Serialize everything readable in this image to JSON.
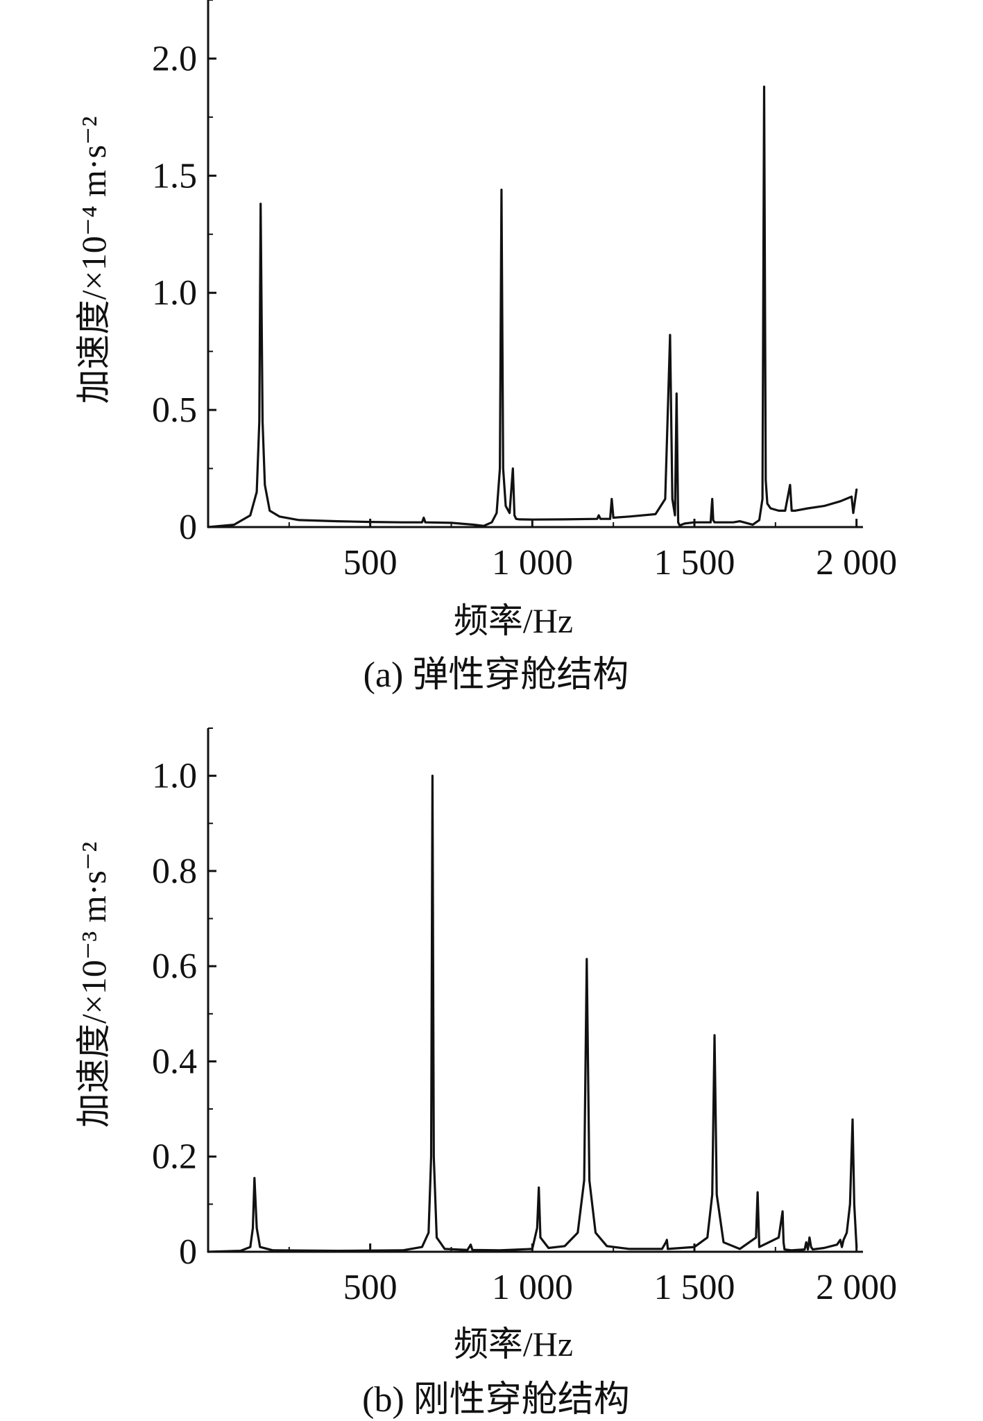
{
  "chart_data": [
    {
      "type": "line",
      "caption": "(a) 弹性穿舱结构",
      "xlabel": "频率/Hz",
      "ylabel": "加速度/×10⁻⁴ m·s⁻²",
      "xlim": [
        0,
        2020
      ],
      "ylim": [
        0,
        2.25
      ],
      "xticks": [
        500,
        1000,
        1500,
        2000
      ],
      "xtick_labels": [
        "500",
        "1 000",
        "1 500",
        "2 000"
      ],
      "yticks": [
        0,
        0.5,
        1.0,
        1.5,
        2.0
      ],
      "ytick_labels": [
        "0",
        "0.5",
        "1.0",
        "1.5",
        "2.0"
      ],
      "grid": false,
      "series": [
        {
          "x": [
            0,
            80,
            130,
            150,
            158,
            162,
            168,
            175,
            190,
            220,
            280,
            400,
            500,
            600,
            660,
            665,
            670,
            750,
            820,
            850,
            875,
            890,
            900,
            905,
            910,
            918,
            930,
            940,
            945,
            950,
            960,
            1000,
            1100,
            1200,
            1205,
            1210,
            1240,
            1245,
            1250,
            1300,
            1380,
            1410,
            1425,
            1432,
            1440,
            1445,
            1450,
            1455,
            1460,
            1470,
            1500,
            1550,
            1555,
            1558,
            1562,
            1565,
            1580,
            1620,
            1640,
            1680,
            1700,
            1710,
            1715,
            1720,
            1725,
            1735,
            1760,
            1780,
            1795,
            1800,
            1810,
            1850,
            1900,
            1950,
            1985,
            1990,
            2000
          ],
          "y": [
            0,
            0.01,
            0.05,
            0.15,
            0.45,
            1.38,
            0.45,
            0.18,
            0.07,
            0.045,
            0.03,
            0.025,
            0.022,
            0.02,
            0.02,
            0.04,
            0.02,
            0.018,
            0.01,
            0.005,
            0.02,
            0.06,
            0.25,
            1.44,
            0.25,
            0.09,
            0.06,
            0.25,
            0.05,
            0.035,
            0.033,
            0.032,
            0.033,
            0.035,
            0.05,
            0.035,
            0.035,
            0.12,
            0.04,
            0.045,
            0.055,
            0.12,
            0.82,
            0.12,
            0.05,
            0.57,
            0.02,
            0.005,
            0.01,
            0.015,
            0.02,
            0.02,
            0.12,
            0.03,
            0.02,
            0.02,
            0.02,
            0.02,
            0.025,
            0.01,
            0.03,
            0.12,
            1.88,
            0.2,
            0.1,
            0.08,
            0.07,
            0.07,
            0.18,
            0.07,
            0.07,
            0.08,
            0.09,
            0.11,
            0.13,
            0.06,
            0.16
          ]
        }
      ]
    },
    {
      "type": "line",
      "caption": "(b) 刚性穿舱结构",
      "xlabel": "频率/Hz",
      "ylabel": "加速度/×10⁻³ m·s⁻²",
      "xlim": [
        0,
        2020
      ],
      "ylim": [
        0,
        1.1
      ],
      "xticks": [
        500,
        1000,
        1500,
        2000
      ],
      "xtick_labels": [
        "500",
        "1 000",
        "1 500",
        "2 000"
      ],
      "yticks": [
        0,
        0.2,
        0.4,
        0.6,
        0.8,
        1.0
      ],
      "ytick_labels": [
        "0",
        "0.2",
        "0.4",
        "0.6",
        "0.8",
        "1.0"
      ],
      "grid": false,
      "series": [
        {
          "x": [
            0,
            100,
            130,
            138,
            143,
            150,
            160,
            200,
            400,
            600,
            660,
            680,
            688,
            692,
            696,
            705,
            730,
            800,
            810,
            815,
            900,
            1000,
            1015,
            1020,
            1025,
            1050,
            1100,
            1140,
            1160,
            1168,
            1176,
            1195,
            1230,
            1300,
            1400,
            1412,
            1415,
            1418,
            1500,
            1540,
            1555,
            1562,
            1569,
            1590,
            1640,
            1690,
            1695,
            1700,
            1760,
            1772,
            1775,
            1778,
            1800,
            1840,
            1845,
            1850,
            1855,
            1860,
            1865,
            1900,
            1940,
            1950,
            1955,
            1960,
            1970,
            1980,
            1988,
            1993,
            2000
          ],
          "y": [
            0,
            0.002,
            0.01,
            0.05,
            0.155,
            0.05,
            0.01,
            0.003,
            0.002,
            0.003,
            0.01,
            0.04,
            0.2,
            1.0,
            0.2,
            0.03,
            0.006,
            0.004,
            0.015,
            0.004,
            0.003,
            0.006,
            0.05,
            0.135,
            0.03,
            0.008,
            0.012,
            0.04,
            0.15,
            0.615,
            0.15,
            0.04,
            0.012,
            0.006,
            0.006,
            0.02,
            0.025,
            0.006,
            0.01,
            0.03,
            0.12,
            0.455,
            0.12,
            0.02,
            0.006,
            0.03,
            0.125,
            0.01,
            0.03,
            0.085,
            0.02,
            0.005,
            0.003,
            0.005,
            0.02,
            0.005,
            0.03,
            0.01,
            0.005,
            0.008,
            0.015,
            0.025,
            0.01,
            0.025,
            0.04,
            0.1,
            0.278,
            0.1,
            0.01
          ]
        }
      ]
    }
  ]
}
